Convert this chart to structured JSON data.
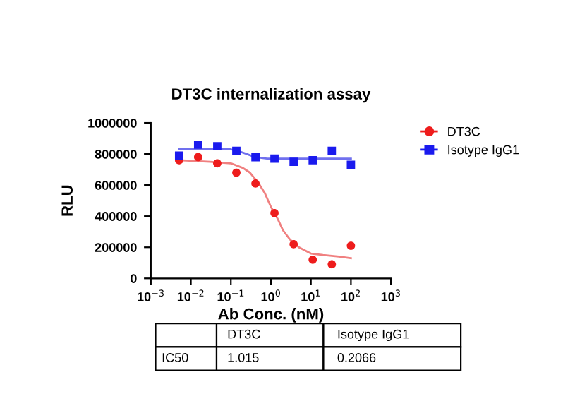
{
  "chart_data": {
    "type": "scatter",
    "title": "DT3C internalization assay",
    "xlabel": "Ab Conc. (nM)",
    "ylabel": "RLU",
    "log": "x",
    "xlim": [
      0.001,
      1000
    ],
    "xticks": [
      {
        "value": 0.001,
        "label": "10$^{−3}$"
      },
      {
        "value": 0.01,
        "label": "10$^{−2}$"
      },
      {
        "value": 0.1,
        "label": "10$^{−1}$"
      },
      {
        "value": 1,
        "label": "10$^{0}$"
      },
      {
        "value": 10,
        "label": "10$^{1}$"
      },
      {
        "value": 100,
        "label": "10$^{2}$"
      },
      {
        "value": 1000,
        "label": "10$^{3}$"
      }
    ],
    "ylim": [
      0,
      1000000
    ],
    "yticks": [
      0,
      200000,
      400000,
      600000,
      800000,
      1000000
    ],
    "grid": false,
    "legend": "top right",
    "series": [
      {
        "name": "DT3C",
        "color": "#ee1c1c",
        "marker": "circle",
        "x": [
          0.00508,
          0.0152,
          0.0457,
          0.137,
          0.412,
          1.23,
          3.7,
          11.1,
          33.3,
          100
        ],
        "values": [
          760000,
          780000,
          740000,
          680000,
          610000,
          420000,
          220000,
          120000,
          90000,
          210000
        ]
      },
      {
        "name": "Isotype IgG1",
        "color": "#1a1aee",
        "marker": "square",
        "x": [
          0.00508,
          0.0152,
          0.0457,
          0.137,
          0.412,
          1.23,
          3.7,
          11.1,
          33.3,
          100
        ],
        "values": [
          790000,
          860000,
          850000,
          820000,
          780000,
          770000,
          750000,
          760000,
          820000,
          730000
        ]
      },
      {
        "type": "line",
        "color": "#f08080",
        "marker": "none",
        "x": [
          0.00508,
          0.03,
          0.1,
          0.2,
          0.3,
          0.5,
          0.7,
          1,
          1.5,
          2,
          3,
          5,
          10,
          20,
          50,
          100
        ],
        "values": [
          760000,
          750000,
          740000,
          710000,
          680000,
          610000,
          550000,
          460000,
          380000,
          310000,
          250000,
          200000,
          160000,
          150000,
          140000,
          130000
        ]
      },
      {
        "type": "line",
        "color": "#7070ee",
        "marker": "none",
        "x": [
          0.00508,
          0.05,
          0.1,
          0.15,
          0.25,
          0.4,
          0.8,
          2,
          10,
          100
        ],
        "values": [
          830000,
          830000,
          830000,
          820000,
          800000,
          780000,
          770000,
          770000,
          770000,
          770000
        ]
      }
    ],
    "annotations": [
      "IC50",
      "DT3C",
      "Isotype IgG1",
      "1.015",
      "0.2066"
    ]
  }
}
